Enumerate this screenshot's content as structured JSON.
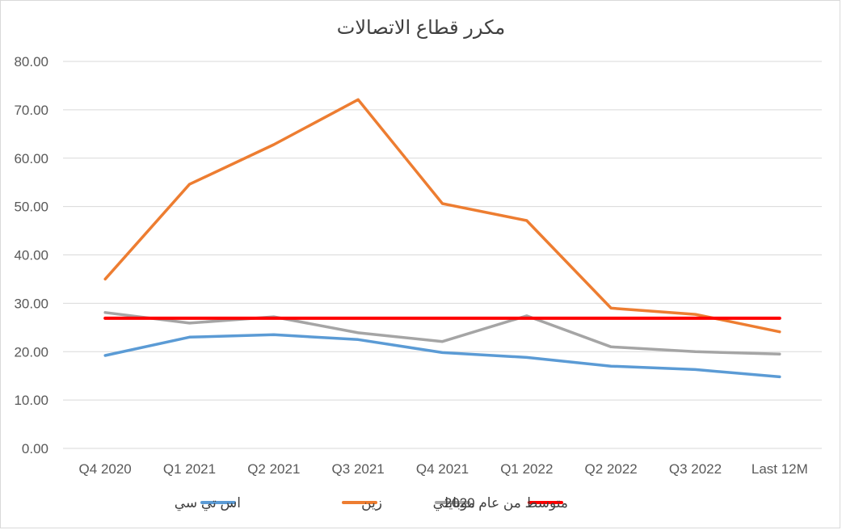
{
  "chart_data": {
    "type": "line",
    "title": "مكرر قطاع الاتصالات",
    "xlabel": "",
    "ylabel": "",
    "ylim": [
      0,
      80
    ],
    "yticks": [
      "0.00",
      "10.00",
      "20.00",
      "30.00",
      "40.00",
      "50.00",
      "60.00",
      "70.00",
      "80.00"
    ],
    "categories": [
      "Q4 2020",
      "Q1 2021",
      "Q2 2021",
      "Q3 2021",
      "Q4 2021",
      "Q1 2022",
      "Q2 2022",
      "Q3 2022",
      "Last 12M"
    ],
    "grid": true,
    "legend_position": "bottom",
    "series": [
      {
        "name": "اس تي سي",
        "color": "#5b9bd5",
        "values": [
          19.2,
          23.0,
          23.5,
          22.5,
          19.8,
          18.8,
          17.0,
          16.3,
          14.8
        ]
      },
      {
        "name": "زين",
        "color": "#ed7d31",
        "values": [
          35.0,
          54.6,
          62.8,
          72.1,
          50.6,
          47.1,
          29.0,
          27.7,
          24.1
        ]
      },
      {
        "name": "موبايلي",
        "color": "#a5a5a5",
        "values": [
          28.1,
          25.9,
          27.2,
          23.9,
          22.1,
          27.4,
          21.0,
          20.0,
          19.5
        ]
      },
      {
        "name": "متوسط من عام 2020",
        "color": "#ff0000",
        "values": [
          26.9,
          26.9,
          26.9,
          26.9,
          26.9,
          26.9,
          26.9,
          26.9,
          26.9
        ]
      }
    ]
  }
}
